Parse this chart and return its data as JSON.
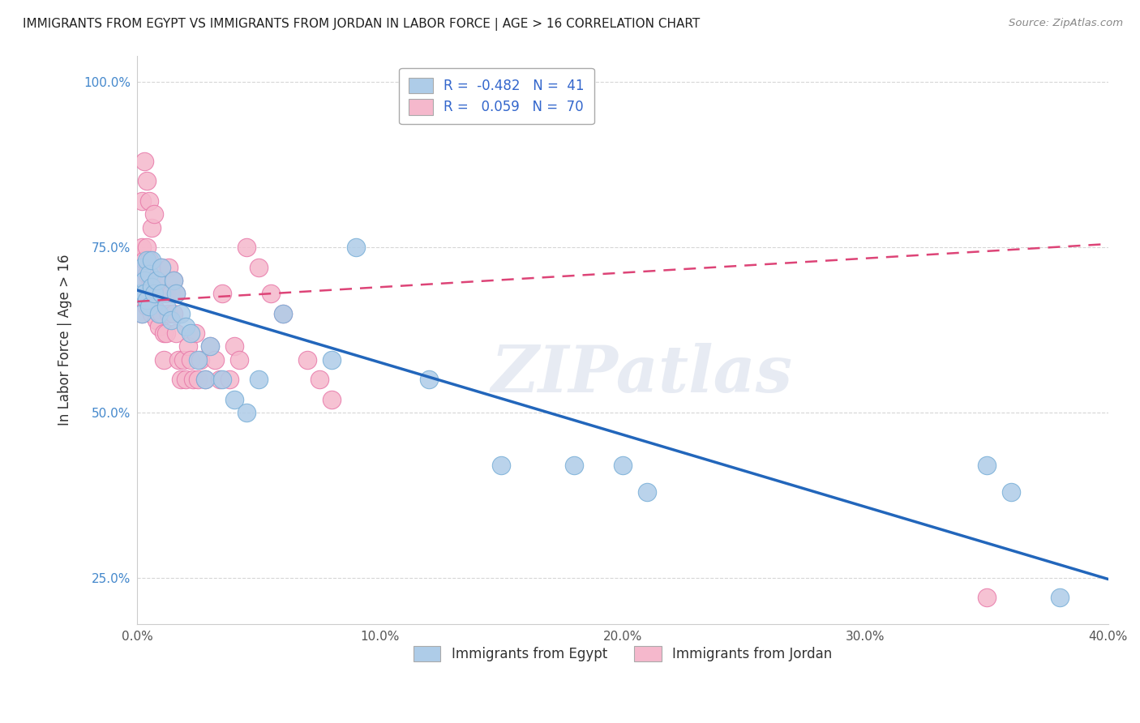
{
  "title": "IMMIGRANTS FROM EGYPT VS IMMIGRANTS FROM JORDAN IN LABOR FORCE | AGE > 16 CORRELATION CHART",
  "source": "Source: ZipAtlas.com",
  "ylabel": "In Labor Force | Age > 16",
  "xlim": [
    0.0,
    0.4
  ],
  "ylim": [
    0.18,
    1.04
  ],
  "xticks": [
    0.0,
    0.1,
    0.2,
    0.3,
    0.4
  ],
  "xticklabels": [
    "0.0%",
    "10.0%",
    "20.0%",
    "30.0%",
    "40.0%"
  ],
  "yticks": [
    0.25,
    0.5,
    0.75,
    1.0
  ],
  "yticklabels": [
    "25.0%",
    "50.0%",
    "75.0%",
    "100.0%"
  ],
  "egypt_color": "#aecce8",
  "egypt_edge": "#7ab0d8",
  "jordan_color": "#f5b8cc",
  "jordan_edge": "#e87aaa",
  "egypt_line_color": "#2266bb",
  "jordan_line_color": "#dd4477",
  "egypt_R": -0.482,
  "egypt_N": 41,
  "jordan_R": 0.059,
  "jordan_N": 70,
  "legend_label_egypt": "Immigrants from Egypt",
  "legend_label_jordan": "Immigrants from Jordan",
  "watermark": "ZIPatlas",
  "background_color": "#ffffff",
  "grid_color": "#cccccc",
  "egypt_scatter_x": [
    0.001,
    0.002,
    0.002,
    0.003,
    0.003,
    0.004,
    0.004,
    0.005,
    0.005,
    0.006,
    0.006,
    0.007,
    0.008,
    0.009,
    0.01,
    0.01,
    0.012,
    0.014,
    0.015,
    0.016,
    0.018,
    0.02,
    0.022,
    0.025,
    0.028,
    0.03,
    0.035,
    0.04,
    0.045,
    0.05,
    0.06,
    0.08,
    0.09,
    0.12,
    0.15,
    0.18,
    0.2,
    0.21,
    0.35,
    0.36,
    0.38
  ],
  "egypt_scatter_y": [
    0.68,
    0.72,
    0.65,
    0.7,
    0.68,
    0.73,
    0.67,
    0.71,
    0.66,
    0.69,
    0.73,
    0.68,
    0.7,
    0.65,
    0.72,
    0.68,
    0.66,
    0.64,
    0.7,
    0.68,
    0.65,
    0.63,
    0.62,
    0.58,
    0.55,
    0.6,
    0.55,
    0.52,
    0.5,
    0.55,
    0.65,
    0.58,
    0.75,
    0.55,
    0.42,
    0.42,
    0.42,
    0.38,
    0.42,
    0.38,
    0.22
  ],
  "jordan_scatter_x": [
    0.001,
    0.001,
    0.002,
    0.002,
    0.002,
    0.003,
    0.003,
    0.003,
    0.004,
    0.004,
    0.004,
    0.005,
    0.005,
    0.005,
    0.006,
    0.006,
    0.006,
    0.007,
    0.007,
    0.008,
    0.008,
    0.008,
    0.009,
    0.009,
    0.01,
    0.01,
    0.01,
    0.011,
    0.011,
    0.012,
    0.012,
    0.013,
    0.013,
    0.014,
    0.015,
    0.015,
    0.016,
    0.016,
    0.017,
    0.018,
    0.019,
    0.02,
    0.021,
    0.022,
    0.023,
    0.024,
    0.025,
    0.026,
    0.028,
    0.03,
    0.032,
    0.034,
    0.035,
    0.038,
    0.04,
    0.042,
    0.045,
    0.05,
    0.055,
    0.06,
    0.07,
    0.075,
    0.08,
    0.002,
    0.003,
    0.004,
    0.005,
    0.006,
    0.007,
    0.35
  ],
  "jordan_scatter_y": [
    0.68,
    0.72,
    0.65,
    0.7,
    0.75,
    0.68,
    0.73,
    0.67,
    0.71,
    0.66,
    0.75,
    0.69,
    0.73,
    0.68,
    0.7,
    0.65,
    0.72,
    0.68,
    0.66,
    0.64,
    0.7,
    0.68,
    0.65,
    0.63,
    0.72,
    0.68,
    0.65,
    0.62,
    0.58,
    0.68,
    0.62,
    0.72,
    0.65,
    0.68,
    0.7,
    0.65,
    0.68,
    0.62,
    0.58,
    0.55,
    0.58,
    0.55,
    0.6,
    0.58,
    0.55,
    0.62,
    0.55,
    0.58,
    0.55,
    0.6,
    0.58,
    0.55,
    0.68,
    0.55,
    0.6,
    0.58,
    0.75,
    0.72,
    0.68,
    0.65,
    0.58,
    0.55,
    0.52,
    0.82,
    0.88,
    0.85,
    0.82,
    0.78,
    0.8,
    0.22
  ],
  "egypt_trend_x": [
    0.0,
    0.4
  ],
  "egypt_trend_y": [
    0.685,
    0.248
  ],
  "jordan_trend_x": [
    0.0,
    0.4
  ],
  "jordan_trend_y": [
    0.668,
    0.755
  ]
}
